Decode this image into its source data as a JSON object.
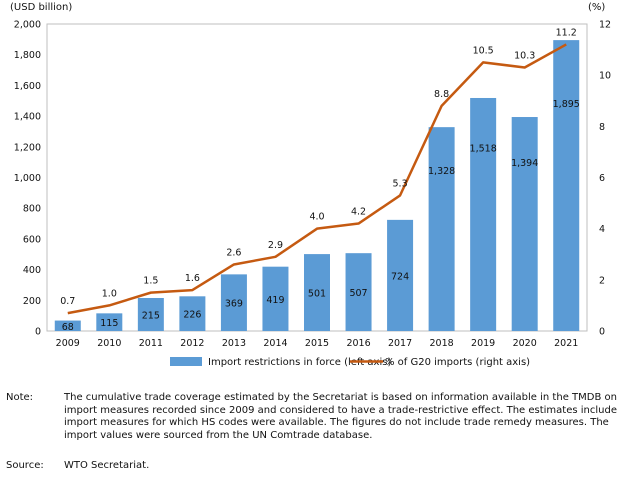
{
  "chart_data": {
    "type": "bar",
    "categories": [
      "2009",
      "2010",
      "2011",
      "2012",
      "2013",
      "2014",
      "2015",
      "2016",
      "2017",
      "2018",
      "2019",
      "2020",
      "2021"
    ],
    "series": [
      {
        "name": "Import restrictions in force (left axis)",
        "kind": "bar",
        "axis": "left",
        "values": [
          68,
          115,
          215,
          226,
          369,
          419,
          501,
          507,
          724,
          1328,
          1518,
          1394,
          1895
        ],
        "labels": [
          "68",
          "115",
          "215",
          "226",
          "369",
          "419",
          "501",
          "507",
          "724",
          "1,328",
          "1,518",
          "1,394",
          "1,895"
        ]
      },
      {
        "name": "% of G20 imports (right axis)",
        "kind": "line",
        "axis": "right",
        "values": [
          0.7,
          1.0,
          1.5,
          1.6,
          2.6,
          2.9,
          4.0,
          4.2,
          5.3,
          8.8,
          10.5,
          10.3,
          11.2
        ],
        "labels": [
          "0.7",
          "1.0",
          "1.5",
          "1.6",
          "2.6",
          "2.9",
          "4.0",
          "4.2",
          "5.3",
          "8.8",
          "10.5",
          "10.3",
          "11.2"
        ]
      }
    ],
    "ylabel_left": "(USD billion)",
    "ylabel_right": "(%)",
    "ylim_left": [
      0,
      2000
    ],
    "ylim_right": [
      0,
      12
    ],
    "yticks_left": [
      "0",
      "200",
      "400",
      "600",
      "800",
      "1,000",
      "1,200",
      "1,400",
      "1,600",
      "1,800",
      "2,000"
    ],
    "yticks_right": [
      "0",
      "2",
      "4",
      "6",
      "8",
      "10",
      "12"
    ],
    "legend_position": "bottom",
    "grid": false,
    "colors": {
      "bar": "#5b9bd5",
      "line": "#c55a11"
    }
  },
  "note": {
    "label": "Note:",
    "text": "The cumulative trade coverage estimated by the Secretariat is based on information available in the TMDB on import measures recorded since 2009 and considered to have a trade-restrictive effect. The estimates include import measures for which HS codes were available. The figures do not include trade remedy measures. The import values were sourced from the UN Comtrade database."
  },
  "source": {
    "label": "Source:",
    "text": "WTO Secretariat."
  }
}
